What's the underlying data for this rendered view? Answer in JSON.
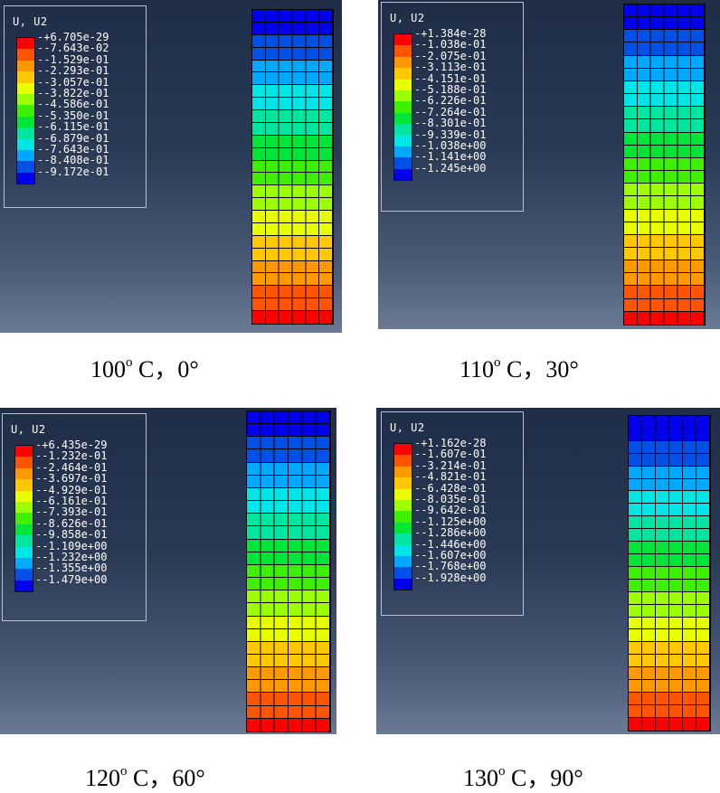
{
  "colors": [
    "#ff0000",
    "#ff5400",
    "#ff9900",
    "#ffc800",
    "#e8ff00",
    "#9bff00",
    "#3cf000",
    "#00e638",
    "#00e6a0",
    "#00e6e6",
    "#00a8ff",
    "#0050e6",
    "#0000ee"
  ],
  "panels": [
    {
      "legend_title": "U, U2",
      "legend_values": [
        "+6.705e-29",
        "-7.643e-02",
        "-1.529e-01",
        "-2.293e-01",
        "-3.057e-01",
        "-3.822e-01",
        "-4.586e-01",
        "-5.350e-01",
        "-6.115e-01",
        "-6.879e-01",
        "-7.643e-01",
        "-8.408e-01",
        "-9.172e-01"
      ],
      "caption_temp": "100",
      "caption_deg": "o",
      "caption_rest": " C，0°"
    },
    {
      "legend_title": "U, U2",
      "legend_values": [
        "+1.384e-28",
        "-1.038e-01",
        "-2.075e-01",
        "-3.113e-01",
        "-4.151e-01",
        "-5.188e-01",
        "-6.226e-01",
        "-7.264e-01",
        "-8.301e-01",
        "-9.339e-01",
        "-1.038e+00",
        "-1.141e+00",
        "-1.245e+00"
      ],
      "caption_temp": "110",
      "caption_deg": "o",
      "caption_rest": " C，30°"
    },
    {
      "legend_title": "U, U2",
      "legend_values": [
        "+6.435e-29",
        "-1.232e-01",
        "-2.464e-01",
        "-3.697e-01",
        "-4.929e-01",
        "-6.161e-01",
        "-7.393e-01",
        "-8.626e-01",
        "-9.858e-01",
        "-1.109e+00",
        "-1.232e+00",
        "-1.355e+00",
        "-1.479e+00"
      ],
      "caption_temp": "120",
      "caption_deg": "o",
      "caption_rest": " C，60°"
    },
    {
      "legend_title": "U, U2",
      "legend_values": [
        "+1.162e-28",
        "-1.607e-01",
        "-3.214e-01",
        "-4.821e-01",
        "-6.428e-01",
        "-8.035e-01",
        "-9.642e-01",
        "-1.125e+00",
        "-1.286e+00",
        "-1.446e+00",
        "-1.607e+00",
        "-1.768e+00",
        "-1.928e+00"
      ],
      "caption_temp": "130",
      "caption_deg": "o",
      "caption_rest": " C，90°"
    }
  ]
}
